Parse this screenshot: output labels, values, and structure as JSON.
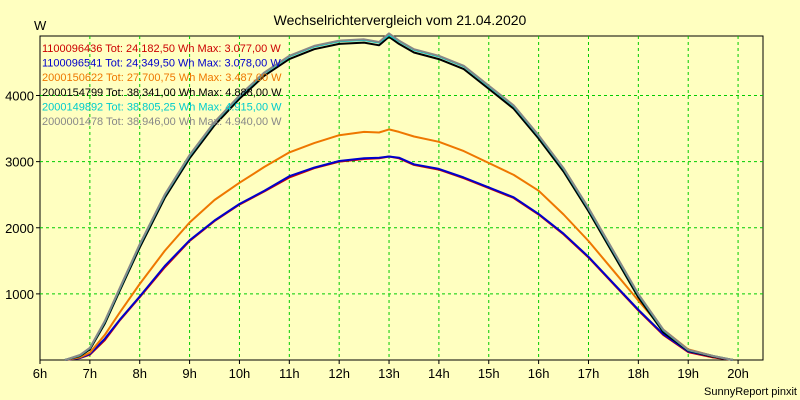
{
  "chart_data": {
    "type": "line",
    "title": "Wechselrichtervergleich vom 21.04.2020",
    "ylabel": "W",
    "xlabel": "",
    "footer": "SunnyReport pinxit",
    "xlim": [
      6,
      20.5
    ],
    "ylim": [
      0,
      4900
    ],
    "x_ticks": [
      {
        "value": 6,
        "label": "6h"
      },
      {
        "value": 7,
        "label": "7h"
      },
      {
        "value": 8,
        "label": "8h"
      },
      {
        "value": 9,
        "label": "9h"
      },
      {
        "value": 10,
        "label": "10h"
      },
      {
        "value": 11,
        "label": "11h"
      },
      {
        "value": 12,
        "label": "12h"
      },
      {
        "value": 13,
        "label": "13h"
      },
      {
        "value": 14,
        "label": "14h"
      },
      {
        "value": 15,
        "label": "15h"
      },
      {
        "value": 16,
        "label": "16h"
      },
      {
        "value": 17,
        "label": "17h"
      },
      {
        "value": 18,
        "label": "18h"
      },
      {
        "value": 19,
        "label": "19h"
      },
      {
        "value": 20,
        "label": "20h"
      }
    ],
    "y_ticks": [
      {
        "value": 1000,
        "label": "1000"
      },
      {
        "value": 2000,
        "label": "2000"
      },
      {
        "value": 3000,
        "label": "3000"
      },
      {
        "value": 4000,
        "label": "4000"
      }
    ],
    "grid": true,
    "legend_position": "top-left",
    "series": [
      {
        "name": "1100096436",
        "legend": "1100096436 Tot: 24.182,50 Wh Max: 3.077,00 W",
        "color": "#cc0000",
        "x": [
          6.5,
          6.8,
          7.0,
          7.3,
          7.6,
          8.0,
          8.5,
          9.0,
          9.5,
          10.0,
          10.5,
          11.0,
          11.5,
          12.0,
          12.5,
          12.8,
          13.0,
          13.2,
          13.5,
          14.0,
          14.5,
          15.0,
          15.5,
          16.0,
          16.5,
          17.0,
          17.5,
          18.0,
          18.5,
          19.0,
          19.5,
          19.9
        ],
        "y": [
          0,
          30,
          80,
          300,
          600,
          950,
          1400,
          1800,
          2100,
          2350,
          2550,
          2760,
          2900,
          3000,
          3040,
          3050,
          3077,
          3050,
          2950,
          2880,
          2750,
          2600,
          2450,
          2200,
          1900,
          1550,
          1150,
          750,
          380,
          120,
          40,
          0
        ]
      },
      {
        "name": "1100096541",
        "legend": "1100096541 Tot: 24.349,50 Wh Max: 3.078,00 W",
        "color": "#0000cc",
        "x": [
          6.5,
          6.8,
          7.0,
          7.3,
          7.6,
          8.0,
          8.5,
          9.0,
          9.5,
          10.0,
          10.5,
          11.0,
          11.5,
          12.0,
          12.5,
          12.8,
          13.0,
          13.2,
          13.5,
          14.0,
          14.5,
          15.0,
          15.5,
          16.0,
          16.5,
          17.0,
          17.5,
          18.0,
          18.5,
          19.0,
          19.5,
          19.9
        ],
        "y": [
          0,
          30,
          90,
          320,
          610,
          960,
          1420,
          1810,
          2110,
          2360,
          2560,
          2780,
          2910,
          3010,
          3050,
          3060,
          3078,
          3060,
          2960,
          2890,
          2760,
          2610,
          2460,
          2210,
          1910,
          1560,
          1160,
          760,
          390,
          130,
          50,
          0
        ]
      },
      {
        "name": "2000150622",
        "legend": "2000150622 Tot: 27.700,75 Wh Max: 3.487,00 W",
        "color": "#ee7700",
        "x": [
          6.5,
          6.8,
          7.0,
          7.3,
          7.6,
          8.0,
          8.5,
          9.0,
          9.5,
          10.0,
          10.5,
          11.0,
          11.5,
          12.0,
          12.5,
          12.8,
          13.0,
          13.2,
          13.5,
          14.0,
          14.5,
          15.0,
          15.5,
          16.0,
          16.5,
          17.0,
          17.5,
          18.0,
          18.5,
          19.0,
          19.5,
          19.9
        ],
        "y": [
          0,
          40,
          110,
          380,
          720,
          1150,
          1650,
          2080,
          2420,
          2680,
          2920,
          3140,
          3280,
          3400,
          3450,
          3440,
          3487,
          3450,
          3380,
          3300,
          3160,
          2980,
          2800,
          2560,
          2200,
          1800,
          1350,
          900,
          460,
          160,
          60,
          0
        ]
      },
      {
        "name": "2000154799",
        "legend": "2000154799 Tot: 38.341,00 Wh Max: 4.888,00 W",
        "color": "#000000",
        "x": [
          6.5,
          6.8,
          7.0,
          7.3,
          7.6,
          8.0,
          8.5,
          9.0,
          9.5,
          10.0,
          10.5,
          11.0,
          11.5,
          12.0,
          12.5,
          12.8,
          13.0,
          13.2,
          13.5,
          14.0,
          14.5,
          15.0,
          15.5,
          16.0,
          16.5,
          17.0,
          17.5,
          18.0,
          18.5,
          19.0,
          19.5,
          19.9
        ],
        "y": [
          0,
          60,
          160,
          550,
          1050,
          1700,
          2450,
          3050,
          3550,
          3950,
          4300,
          4550,
          4700,
          4780,
          4800,
          4760,
          4888,
          4780,
          4650,
          4550,
          4400,
          4100,
          3800,
          3350,
          2850,
          2250,
          1600,
          950,
          420,
          140,
          50,
          0
        ]
      },
      {
        "name": "2000149892",
        "legend": "2000149892 Tot: 38.805,25 Wh Max: 4.915,00 W",
        "color": "#00cccc",
        "x": [
          6.5,
          6.8,
          7.0,
          7.3,
          7.6,
          8.0,
          8.5,
          9.0,
          9.5,
          10.0,
          10.5,
          11.0,
          11.5,
          12.0,
          12.5,
          12.8,
          13.0,
          13.2,
          13.5,
          14.0,
          14.5,
          15.0,
          15.5,
          16.0,
          16.5,
          17.0,
          17.5,
          18.0,
          18.5,
          19.0,
          19.5,
          19.9
        ],
        "y": [
          0,
          70,
          180,
          580,
          1080,
          1740,
          2490,
          3090,
          3590,
          3990,
          4340,
          4590,
          4740,
          4820,
          4840,
          4800,
          4915,
          4820,
          4690,
          4590,
          4440,
          4140,
          3840,
          3390,
          2890,
          2290,
          1640,
          990,
          450,
          150,
          60,
          0
        ]
      },
      {
        "name": "2000001478",
        "legend": "2000001478 Tot: 38.946,00 Wh Max: 4.940,00 W",
        "color": "#888888",
        "x": [
          6.5,
          6.8,
          7.0,
          7.3,
          7.6,
          8.0,
          8.5,
          9.0,
          9.5,
          10.0,
          10.5,
          11.0,
          11.5,
          12.0,
          12.5,
          12.8,
          13.0,
          13.2,
          13.5,
          14.0,
          14.5,
          15.0,
          15.5,
          16.0,
          16.5,
          17.0,
          17.5,
          18.0,
          18.5,
          19.0,
          19.5,
          19.9
        ],
        "y": [
          0,
          75,
          185,
          590,
          1090,
          1750,
          2500,
          3100,
          3600,
          4000,
          4350,
          4600,
          4750,
          4830,
          4850,
          4810,
          4940,
          4830,
          4700,
          4600,
          4450,
          4150,
          3850,
          3400,
          2900,
          2300,
          1650,
          1000,
          460,
          155,
          60,
          0
        ]
      }
    ]
  }
}
